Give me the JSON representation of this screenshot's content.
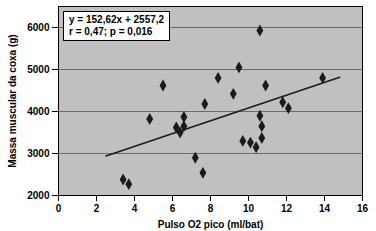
{
  "chart_data": {
    "type": "scatter",
    "x_label": "Pulso O2 pico (ml/bat)",
    "y_label": "Massa muscular da coxa (g)",
    "annotations": [
      "y = 152,62x + 2557,2",
      "r = 0,47; p = 0,016"
    ],
    "x": [
      3.4,
      3.7,
      4.8,
      5.5,
      6.2,
      6.4,
      6.6,
      6.6,
      7.2,
      7.6,
      7.7,
      8.4,
      9.2,
      9.5,
      9.7,
      10.1,
      10.4,
      10.6,
      10.6,
      10.7,
      10.7,
      10.9,
      11.8,
      12.1,
      13.9
    ],
    "values": [
      2380,
      2270,
      3820,
      4620,
      3620,
      3500,
      3870,
      3650,
      2900,
      2540,
      4180,
      4800,
      4420,
      5050,
      3300,
      3260,
      3150,
      5930,
      3900,
      3650,
      3370,
      4620,
      4220,
      4080,
      4800
    ],
    "marker": "diamond",
    "color": "#1a1a1a",
    "fit_line": {
      "x": [
        2.5,
        14.8
      ],
      "values": [
        2938.75,
        4815.98
      ],
      "color": "#1a1a1a"
    },
    "xlim": [
      0,
      16
    ],
    "xticks": [
      0,
      2,
      4,
      6,
      8,
      10,
      12,
      14,
      16
    ],
    "ylim": [
      2000,
      6500
    ],
    "yticks": [
      2000,
      3000,
      4000,
      5000,
      6000
    ],
    "grid": true
  }
}
